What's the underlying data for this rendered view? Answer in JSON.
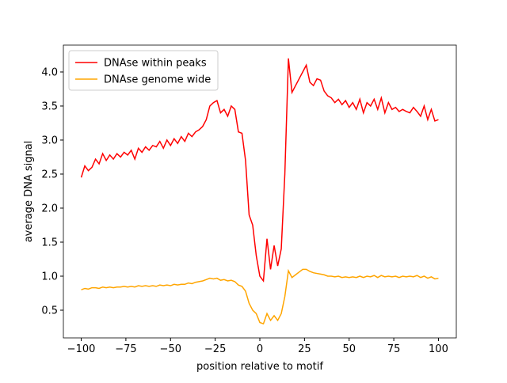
{
  "chart_data": {
    "type": "line",
    "xlabel": "position relative to motif",
    "ylabel": "average DNA signal",
    "x": [
      -100,
      -98,
      -96,
      -94,
      -92,
      -90,
      -88,
      -86,
      -84,
      -82,
      -80,
      -78,
      -76,
      -74,
      -72,
      -70,
      -68,
      -66,
      -64,
      -62,
      -60,
      -58,
      -56,
      -54,
      -52,
      -50,
      -48,
      -46,
      -44,
      -42,
      -40,
      -38,
      -36,
      -34,
      -32,
      -30,
      -28,
      -26,
      -24,
      -22,
      -20,
      -18,
      -16,
      -14,
      -12,
      -10,
      -8,
      -6,
      -4,
      -2,
      0,
      2,
      4,
      6,
      8,
      10,
      12,
      14,
      16,
      18,
      20,
      22,
      24,
      26,
      28,
      30,
      32,
      34,
      36,
      38,
      40,
      42,
      44,
      46,
      48,
      50,
      52,
      54,
      56,
      58,
      60,
      62,
      64,
      66,
      68,
      70,
      72,
      74,
      76,
      78,
      80,
      82,
      84,
      86,
      88,
      90,
      92,
      94,
      96,
      98,
      100
    ],
    "series": [
      {
        "name": "DNAse within peaks",
        "color": "#ff0000",
        "values": [
          2.45,
          2.62,
          2.55,
          2.6,
          2.72,
          2.65,
          2.8,
          2.7,
          2.78,
          2.72,
          2.8,
          2.75,
          2.82,
          2.78,
          2.85,
          2.72,
          2.88,
          2.82,
          2.9,
          2.85,
          2.92,
          2.9,
          2.98,
          2.88,
          3.0,
          2.92,
          3.02,
          2.95,
          3.05,
          2.98,
          3.1,
          3.05,
          3.12,
          3.15,
          3.2,
          3.3,
          3.5,
          3.55,
          3.58,
          3.4,
          3.45,
          3.35,
          3.5,
          3.45,
          3.12,
          3.1,
          2.7,
          1.9,
          1.75,
          1.3,
          1.0,
          0.93,
          1.55,
          1.1,
          1.45,
          1.15,
          1.4,
          2.5,
          4.2,
          3.7,
          3.8,
          3.9,
          4.0,
          4.1,
          3.85,
          3.8,
          3.9,
          3.88,
          3.72,
          3.65,
          3.62,
          3.55,
          3.6,
          3.52,
          3.58,
          3.48,
          3.55,
          3.45,
          3.6,
          3.4,
          3.55,
          3.5,
          3.6,
          3.45,
          3.62,
          3.4,
          3.55,
          3.45,
          3.48,
          3.42,
          3.45,
          3.42,
          3.4,
          3.48,
          3.42,
          3.35,
          3.5,
          3.3,
          3.45,
          3.28,
          3.3
        ]
      },
      {
        "name": "DNAse genome wide",
        "color": "#ffa500",
        "values": [
          0.8,
          0.82,
          0.81,
          0.83,
          0.83,
          0.82,
          0.84,
          0.83,
          0.84,
          0.83,
          0.84,
          0.84,
          0.85,
          0.84,
          0.85,
          0.84,
          0.86,
          0.85,
          0.86,
          0.85,
          0.86,
          0.85,
          0.87,
          0.86,
          0.87,
          0.86,
          0.88,
          0.87,
          0.88,
          0.88,
          0.9,
          0.89,
          0.91,
          0.92,
          0.93,
          0.95,
          0.97,
          0.96,
          0.97,
          0.94,
          0.95,
          0.93,
          0.94,
          0.92,
          0.87,
          0.85,
          0.78,
          0.6,
          0.5,
          0.45,
          0.32,
          0.3,
          0.45,
          0.35,
          0.42,
          0.35,
          0.45,
          0.7,
          1.08,
          0.98,
          1.02,
          1.06,
          1.1,
          1.1,
          1.07,
          1.05,
          1.04,
          1.03,
          1.02,
          1.0,
          1.0,
          0.99,
          1.0,
          0.98,
          0.99,
          0.98,
          0.99,
          0.98,
          1.0,
          0.98,
          1.0,
          0.99,
          1.01,
          0.98,
          1.01,
          0.99,
          1.0,
          0.99,
          1.0,
          0.98,
          1.0,
          0.99,
          1.0,
          0.99,
          1.01,
          0.98,
          1.0,
          0.97,
          0.99,
          0.96,
          0.97
        ]
      }
    ],
    "xlim": [
      -110,
      110
    ],
    "ylim": [
      0.093,
      4.395
    ],
    "xticks": [
      {
        "value": -100,
        "label": "−100"
      },
      {
        "value": -75,
        "label": "−75"
      },
      {
        "value": -50,
        "label": "−50"
      },
      {
        "value": -25,
        "label": "−25"
      },
      0,
      25,
      50,
      75,
      100
    ],
    "yticks": [
      0.5,
      {
        "value": 1,
        "label": "1.0"
      },
      1.5,
      {
        "value": 2,
        "label": "2.0"
      },
      2.5,
      {
        "value": 3,
        "label": "3.0"
      },
      3.5,
      {
        "value": 4,
        "label": "4.0"
      }
    ],
    "legend": "upper left",
    "grid": false
  }
}
